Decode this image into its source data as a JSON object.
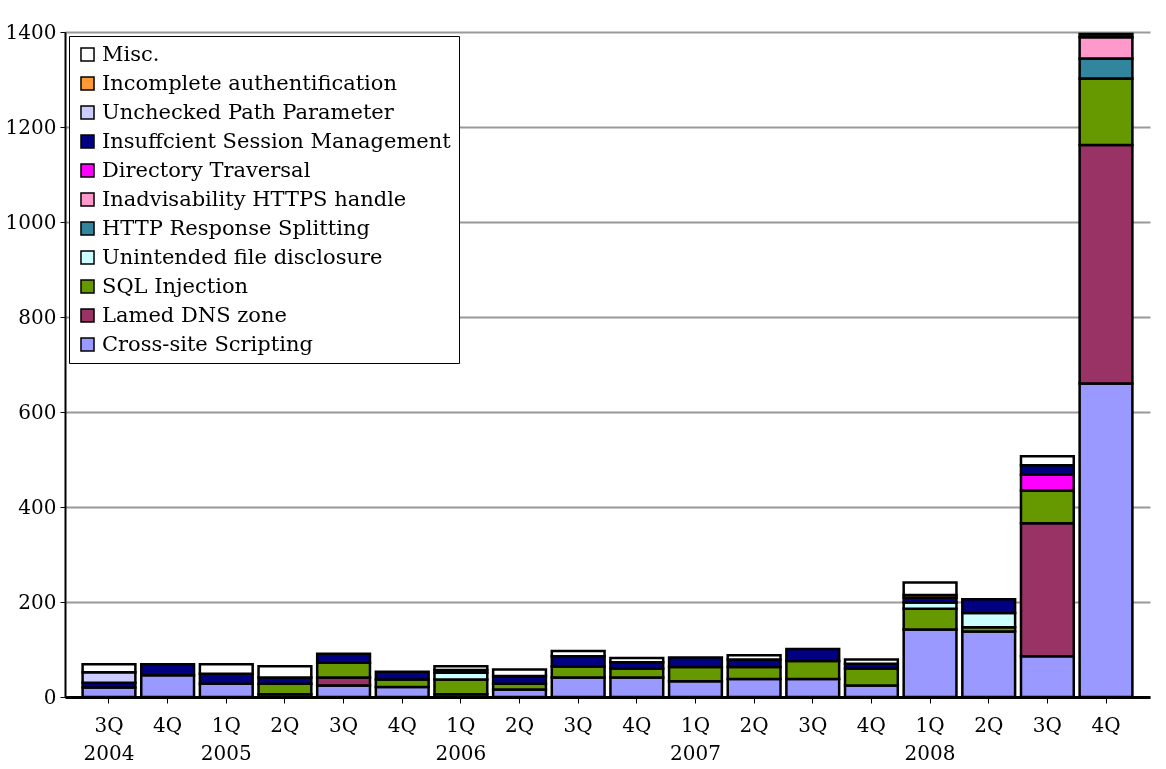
{
  "chart_data": {
    "type": "bar",
    "stacked": true,
    "categories": [
      "3Q\n2004",
      "4Q",
      "1Q\n2005",
      "2Q",
      "3Q",
      "4Q",
      "1Q\n2006",
      "2Q",
      "3Q",
      "4Q",
      "1Q\n2007",
      "2Q",
      "3Q",
      "4Q",
      "1Q\n2008",
      "2Q",
      "3Q",
      "4Q"
    ],
    "series": [
      {
        "name": "Cross-site Scripting",
        "color": "#9999ff",
        "values": [
          20,
          46,
          28,
          6,
          24,
          21,
          6,
          16,
          41,
          41,
          33,
          38,
          38,
          24,
          142,
          138,
          86,
          660
        ]
      },
      {
        "name": "Lamed DNS zone",
        "color": "#993366",
        "values": [
          null,
          null,
          null,
          null,
          17,
          null,
          null,
          null,
          null,
          null,
          null,
          null,
          null,
          null,
          null,
          null,
          280,
          502
        ]
      },
      {
        "name": "SQL Injection",
        "color": "#669900",
        "values": [
          null,
          null,
          null,
          22,
          31,
          16,
          31,
          12,
          23,
          19,
          30,
          25,
          38,
          36,
          44,
          9,
          69,
          140
        ]
      },
      {
        "name": "Unintended file disclosure",
        "color": "#ccffff",
        "values": [
          null,
          null,
          null,
          null,
          null,
          null,
          14,
          null,
          null,
          null,
          null,
          null,
          null,
          null,
          13,
          30,
          null,
          null
        ]
      },
      {
        "name": "HTTP Response Splitting",
        "color": "#31859c",
        "values": [
          null,
          null,
          null,
          null,
          null,
          null,
          null,
          null,
          null,
          null,
          null,
          null,
          null,
          null,
          null,
          null,
          null,
          42
        ]
      },
      {
        "name": "Inadvisability HTTPS handle",
        "color": "#ff99cc",
        "values": [
          null,
          null,
          null,
          null,
          null,
          null,
          null,
          null,
          null,
          null,
          null,
          null,
          null,
          null,
          null,
          null,
          null,
          45
        ]
      },
      {
        "name": "Directory Traversal",
        "color": "#ff00ff",
        "values": [
          null,
          null,
          null,
          null,
          null,
          null,
          null,
          null,
          null,
          null,
          null,
          null,
          null,
          null,
          null,
          null,
          33,
          null
        ]
      },
      {
        "name": "Insuffcient Session Management",
        "color": "#000080",
        "values": [
          10,
          23,
          21,
          13,
          19,
          16,
          6,
          16,
          22,
          13,
          20,
          16,
          25,
          10,
          10,
          29,
          20,
          7
        ]
      },
      {
        "name": "Unchecked Path Parameter",
        "color": "#ccccff",
        "values": [
          22,
          null,
          null,
          null,
          null,
          null,
          null,
          null,
          null,
          null,
          null,
          null,
          null,
          null,
          null,
          null,
          null,
          null
        ]
      },
      {
        "name": "Incomplete authentification",
        "color": "#ff9933",
        "values": [
          null,
          null,
          null,
          null,
          null,
          null,
          null,
          null,
          null,
          null,
          null,
          null,
          null,
          null,
          6,
          null,
          null,
          null
        ]
      },
      {
        "name": "Misc.",
        "color": "#ffffff",
        "values": [
          17,
          null,
          20,
          24,
          null,
          null,
          8,
          14,
          11,
          9,
          null,
          9,
          null,
          9,
          26,
          null,
          19,
          null
        ]
      }
    ],
    "ylim": [
      0,
      1400
    ],
    "yticks": [
      0,
      200,
      400,
      600,
      800,
      1000,
      1200,
      1400
    ],
    "grid": "y",
    "legend": "top left"
  }
}
